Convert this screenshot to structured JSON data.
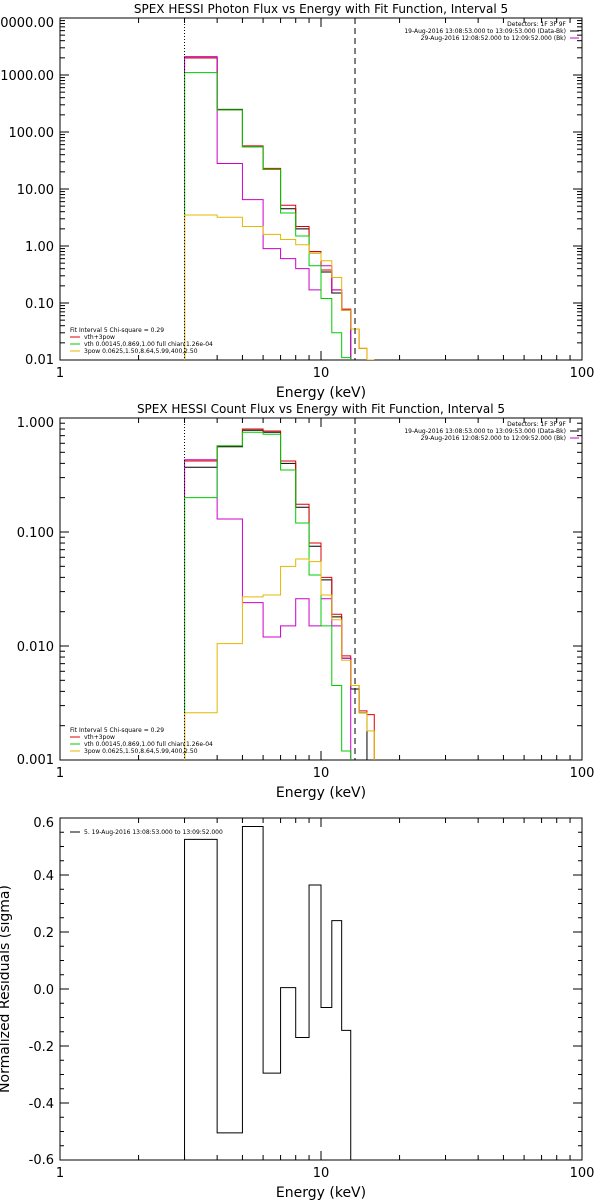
{
  "panels": [
    {
      "id": "photon",
      "type": "line",
      "title": "SPEX HESSI Photon Flux vs Energy with Fit Function, Interval 5",
      "xlabel": "Energy (keV)",
      "xscale": "log",
      "yscale": "log",
      "xlim": [
        1,
        100
      ],
      "ylim": [
        0.01,
        10000
      ],
      "x_tick_labels": [
        "1",
        "10",
        "100"
      ],
      "y_tick_labels": [
        "0.01",
        "0.10",
        "1.00",
        "10.00",
        "100.00",
        "1000.00",
        "10000.00"
      ],
      "y_tick_values": [
        0.01,
        0.1,
        1,
        10,
        100,
        1000,
        10000
      ],
      "vlines": [
        {
          "x": 3.0,
          "style": "dotted"
        },
        {
          "x": 13.5,
          "style": "dashed"
        }
      ],
      "legend_right": [
        {
          "text": "Detectors: 1F 3F 9F",
          "color": ""
        },
        {
          "text": "19-Aug-2016 13:08:53.000 to 13:09:53.000 (Data-Bk)",
          "color": "#000000"
        },
        {
          "text": "29-Aug-2016 12:08:52.000 to 12:09:52.000 (Bk)",
          "color": "#cc00cc"
        }
      ],
      "legend_left": [
        {
          "text": "Fit Interval 5   Chi-square = 0.29",
          "color": ""
        },
        {
          "text": "vth+3pow",
          "color": "#dd0000"
        },
        {
          "text": "vth 0.00145,0.869,1.00   full chian 1.26e-04",
          "color": "#00cc00"
        },
        {
          "text": "3pow 0.0625,1.50,8.64,5.99,400,2.50",
          "color": "#e6b800"
        }
      ]
    },
    {
      "id": "count",
      "type": "line",
      "title": "SPEX HESSI Count Flux vs Energy with Fit Function, Interval 5",
      "xlabel": "Energy (keV)",
      "xscale": "log",
      "yscale": "log",
      "xlim": [
        1,
        100
      ],
      "ylim": [
        0.001,
        1.0
      ],
      "x_tick_labels": [
        "1",
        "10",
        "100"
      ],
      "y_tick_labels": [
        "0.001",
        "0.010",
        "0.100",
        "1.000"
      ],
      "y_tick_values": [
        0.001,
        0.01,
        0.1,
        1.0
      ],
      "vlines": [
        {
          "x": 3.0,
          "style": "dotted"
        },
        {
          "x": 13.5,
          "style": "dashed"
        }
      ],
      "legend_right": [
        {
          "text": "Detectors: 1F 3F 9F",
          "color": ""
        },
        {
          "text": "19-Aug-2016 13:08:53.000 to 13:09:53.000 (Data-Bk)",
          "color": "#000000"
        },
        {
          "text": "29-Aug-2016 12:08:52.000 to 12:09:52.000 (Bk)",
          "color": "#cc00cc"
        }
      ],
      "legend_left": [
        {
          "text": "Fit Interval 5   Chi-square = 0.29",
          "color": ""
        },
        {
          "text": "vth+3pow",
          "color": "#dd0000"
        },
        {
          "text": "vth 0.00145,0.869,1.00   full chian 1.26e-04",
          "color": "#00cc00"
        },
        {
          "text": "3pow 0.0625,1.50,8.64,5.99,400,2.50",
          "color": "#e6b800"
        }
      ]
    },
    {
      "id": "residuals",
      "type": "line",
      "title": "",
      "xlabel": "Energy (keV)",
      "ylabel": "Normalized Residuals (sigma)",
      "xscale": "log",
      "yscale": "linear",
      "xlim": [
        1,
        100
      ],
      "ylim": [
        -0.6,
        0.6
      ],
      "x_tick_labels": [
        "1",
        "10",
        "100"
      ],
      "y_tick_labels": [
        "-0.6",
        "-0.4",
        "-0.2",
        "0.0",
        "0.2",
        "0.4",
        "0.6"
      ],
      "y_tick_values": [
        -0.6,
        -0.4,
        -0.2,
        0.0,
        0.2,
        0.4,
        0.6
      ],
      "vlines": [],
      "legend_left": [
        {
          "text": "5. 19-Aug-2016 13:08:53.000 to 13:09:52.000",
          "color": "#000000"
        }
      ],
      "legend_right": []
    }
  ],
  "chart_data": [
    {
      "type": "line",
      "title": "SPEX HESSI Photon Flux vs Energy with Fit Function, Interval 5",
      "xlabel": "Energy (keV)",
      "xlim": [
        1,
        100
      ],
      "ylim": [
        0.01,
        10000
      ],
      "step": true,
      "bin_edges": [
        3.0,
        4.0,
        5.0,
        6.0,
        7.0,
        8.0,
        9.0,
        10.0,
        11.0,
        12.0,
        13.0,
        14.0,
        15.0,
        16.0,
        17.0,
        18.0
      ],
      "series": [
        {
          "color": "#000000",
          "values": [
            2000,
            250,
            55,
            22,
            4.5,
            2.0,
            0.75,
            0.35,
            0.15,
            0.075,
            null,
            null,
            null,
            null,
            null
          ]
        },
        {
          "color": "#dd0000",
          "values": [
            2000,
            245,
            57,
            23,
            5.2,
            2.2,
            0.8,
            0.38,
            0.17,
            0.078,
            0.035,
            0.016,
            0.008,
            null,
            null
          ]
        },
        {
          "color": "#cc00cc",
          "values": [
            2100,
            28,
            6.5,
            0.9,
            0.6,
            0.4,
            0.17,
            0.45,
            0.17,
            0.075,
            null,
            null,
            null,
            null,
            null
          ]
        },
        {
          "color": "#00cc00",
          "values": [
            1100,
            245,
            55,
            22,
            3.8,
            1.5,
            0.45,
            0.12,
            0.03,
            0.011,
            null,
            null,
            null,
            null,
            null
          ]
        },
        {
          "color": "#e6b800",
          "values": [
            3.5,
            3.2,
            2.2,
            1.6,
            1.3,
            1.05,
            0.75,
            0.55,
            0.28,
            0.075,
            0.035,
            0.016,
            0.008,
            null,
            null
          ]
        }
      ]
    },
    {
      "type": "line",
      "title": "SPEX HESSI Count Flux vs Energy with Fit Function, Interval 5",
      "xlabel": "Energy (keV)",
      "xlim": [
        1,
        100
      ],
      "ylim": [
        0.001,
        1.0
      ],
      "step": true,
      "bin_edges": [
        3.0,
        4.0,
        5.0,
        6.0,
        7.0,
        8.0,
        9.0,
        10.0,
        11.0,
        12.0,
        13.0,
        14.0,
        15.0,
        16.0,
        17.0,
        18.0
      ],
      "series": [
        {
          "color": "#000000",
          "values": [
            0.37,
            0.56,
            0.78,
            0.75,
            0.4,
            0.165,
            0.075,
            0.038,
            0.018,
            0.0078,
            0.0042,
            0.0026,
            null,
            null,
            null
          ]
        },
        {
          "color": "#dd0000",
          "values": [
            0.42,
            0.57,
            0.8,
            0.77,
            0.42,
            0.175,
            0.08,
            0.04,
            0.019,
            0.0082,
            0.0045,
            0.0027,
            0.0025,
            null,
            null
          ]
        },
        {
          "color": "#cc00cc",
          "values": [
            0.43,
            0.13,
            0.024,
            0.012,
            0.015,
            0.026,
            0.015,
            0.026,
            0.015,
            0.0078,
            null,
            null,
            null,
            null,
            null
          ]
        },
        {
          "color": "#00cc00",
          "values": [
            0.2,
            0.57,
            0.75,
            0.72,
            0.35,
            0.12,
            0.042,
            0.015,
            0.0045,
            0.0012,
            null,
            null,
            null,
            null,
            null
          ]
        },
        {
          "color": "#e6b800",
          "values": [
            0.0026,
            0.0105,
            0.027,
            0.028,
            0.05,
            0.058,
            0.055,
            0.028,
            0.017,
            0.0075,
            0.0045,
            0.0026,
            0.0018,
            null,
            null
          ]
        }
      ]
    },
    {
      "type": "line",
      "xlabel": "Energy (keV)",
      "ylabel": "Normalized Residuals (sigma)",
      "xlim": [
        1,
        100
      ],
      "ylim": [
        -0.6,
        0.6
      ],
      "step": true,
      "bin_edges": [
        3.0,
        4.0,
        5.0,
        6.0,
        7.0,
        8.0,
        9.0,
        10.0,
        11.0,
        12.0,
        13.0
      ],
      "series": [
        {
          "color": "#000000",
          "values": [
            0.525,
            -0.505,
            0.57,
            -0.295,
            0.005,
            -0.17,
            0.365,
            -0.065,
            0.24,
            -0.145
          ]
        }
      ]
    }
  ]
}
